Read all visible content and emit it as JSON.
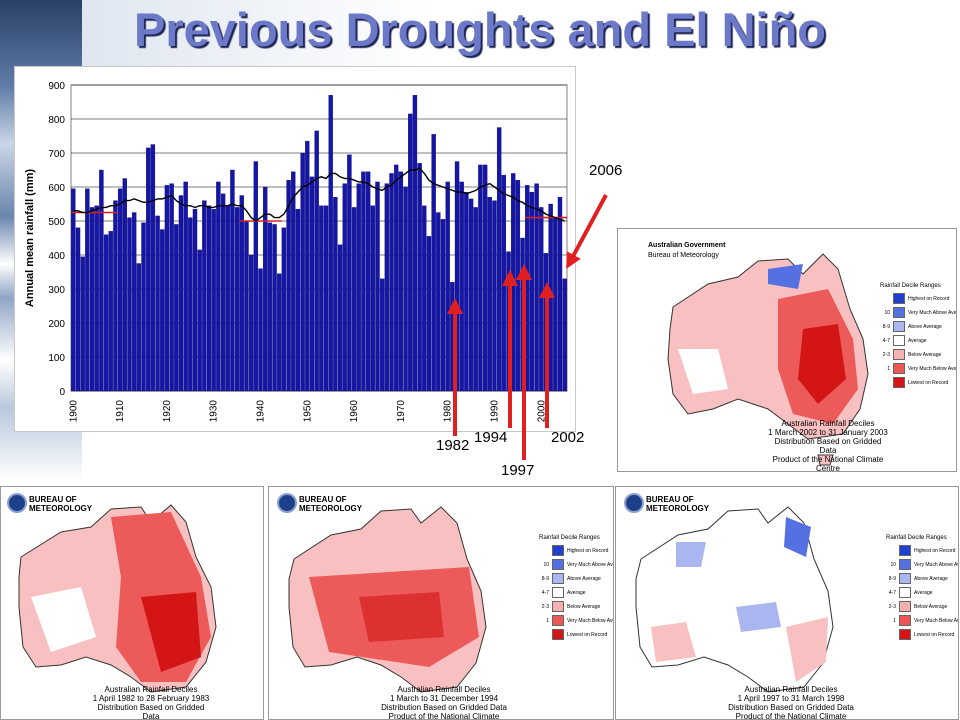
{
  "title": "Previous Droughts and El Niño",
  "chart_data": {
    "type": "bar",
    "ylabel": "Annual mean rainfall (mm)",
    "xlabel": "",
    "ylim": [
      0,
      900
    ],
    "yticks": [
      "0",
      "100",
      "200",
      "300",
      "400",
      "500",
      "600",
      "700",
      "800",
      "900"
    ],
    "xtick_labels": [
      "1900",
      "1910",
      "1920",
      "1930",
      "1940",
      "1950",
      "1960",
      "1970",
      "1980",
      "1990",
      "2000"
    ],
    "x_start": 1900,
    "grid": true,
    "bar_color": "#1515a8",
    "line_color": "#000000",
    "mean_line_color": "#d42020",
    "series": [
      {
        "values": [
          595,
          480,
          395,
          595,
          540,
          545,
          650,
          460,
          470,
          560,
          595,
          625,
          510,
          525,
          375,
          495,
          715,
          725,
          515,
          475,
          605,
          610,
          490,
          575,
          615,
          510,
          535,
          415,
          560,
          545,
          535,
          615,
          580,
          545,
          650,
          540,
          575,
          500,
          400,
          675,
          360,
          600,
          495,
          490,
          345,
          480,
          620,
          645,
          535,
          700,
          735,
          630,
          765,
          545,
          545,
          870,
          570,
          430,
          610,
          695,
          540,
          610,
          645,
          645,
          545,
          615,
          330,
          610,
          640,
          665,
          645,
          600,
          815,
          870,
          670,
          545,
          455,
          755,
          525,
          505,
          615,
          320,
          675,
          615,
          585,
          565,
          540,
          665,
          665,
          570,
          560,
          775,
          635,
          410,
          640,
          620,
          450,
          605,
          585,
          610,
          540,
          405,
          550,
          510,
          570,
          330
        ],
        "type": "bar"
      },
      {
        "name": "running mean",
        "type": "line",
        "values": [
          530,
          530,
          525,
          525,
          530,
          535,
          540,
          540,
          545,
          545,
          550,
          560,
          560,
          565,
          560,
          555,
          555,
          560,
          565,
          565,
          570,
          575,
          560,
          550,
          545,
          545,
          540,
          545,
          545,
          540,
          540,
          545,
          545,
          545,
          550,
          545,
          545,
          530,
          510,
          500,
          510,
          520,
          520,
          510,
          510,
          520,
          545,
          570,
          585,
          600,
          605,
          615,
          625,
          630,
          625,
          640,
          640,
          630,
          625,
          625,
          620,
          615,
          615,
          610,
          600,
          595,
          590,
          600,
          605,
          620,
          630,
          640,
          650,
          650,
          655,
          640,
          620,
          610,
          605,
          600,
          595,
          590,
          585,
          585,
          580,
          585,
          590,
          600,
          605,
          610,
          600,
          590,
          580,
          575,
          570,
          560,
          555,
          545,
          540,
          535,
          530,
          520,
          515,
          510,
          505,
          500
        ]
      }
    ],
    "mean_segments": [
      {
        "x0": 1900,
        "x1": 1910,
        "y": 525
      },
      {
        "x0": 1936,
        "x1": 1945,
        "y": 500
      },
      {
        "x0": 1997,
        "x1": 2006,
        "y": 510
      }
    ]
  },
  "annotations": {
    "y1982": "1982",
    "y1994": "1994",
    "y1997": "1997",
    "y2002": "2002",
    "y2006": "2006"
  },
  "map_common": {
    "logo_line1": "BUREAU OF",
    "logo_line2": "METEOROLOGY",
    "legend_title": "Rainfall Decile Ranges",
    "legend": [
      {
        "label": "Highest on Record",
        "decile": "",
        "color": "#1f3fd0"
      },
      {
        "label": "Very Much Above Average",
        "decile": "10",
        "color": "#5570e0"
      },
      {
        "label": "Above Average",
        "decile": "8-9",
        "color": "#aab6f0"
      },
      {
        "label": "Average",
        "decile": "4-7",
        "color": "#ffffff"
      },
      {
        "label": "Below Average",
        "decile": "2-3",
        "color": "#f7b0b0"
      },
      {
        "label": "Very Much Below Average",
        "decile": "1",
        "color": "#ee5555"
      },
      {
        "label": "Lowest on Record",
        "decile": "",
        "color": "#d41515"
      }
    ],
    "caption_title": "Australian Rainfall Deciles",
    "caption_line2": "Distribution Based on Gridded Data",
    "caption_line3": "Product of the National Climate Centre"
  },
  "maps": [
    {
      "period": "1 April 1982 to 28 February 1983"
    },
    {
      "period": "1 March to 31 December 1994"
    },
    {
      "period": "1 April 1997 to 31 March 1998"
    },
    {
      "period": "1 March 2002 to 31 January 2003",
      "header1": "Australian Government",
      "header2": "Bureau of Meteorology"
    }
  ],
  "colors": {
    "title_fill": "#6b79c8",
    "arrow": "#e02020"
  }
}
